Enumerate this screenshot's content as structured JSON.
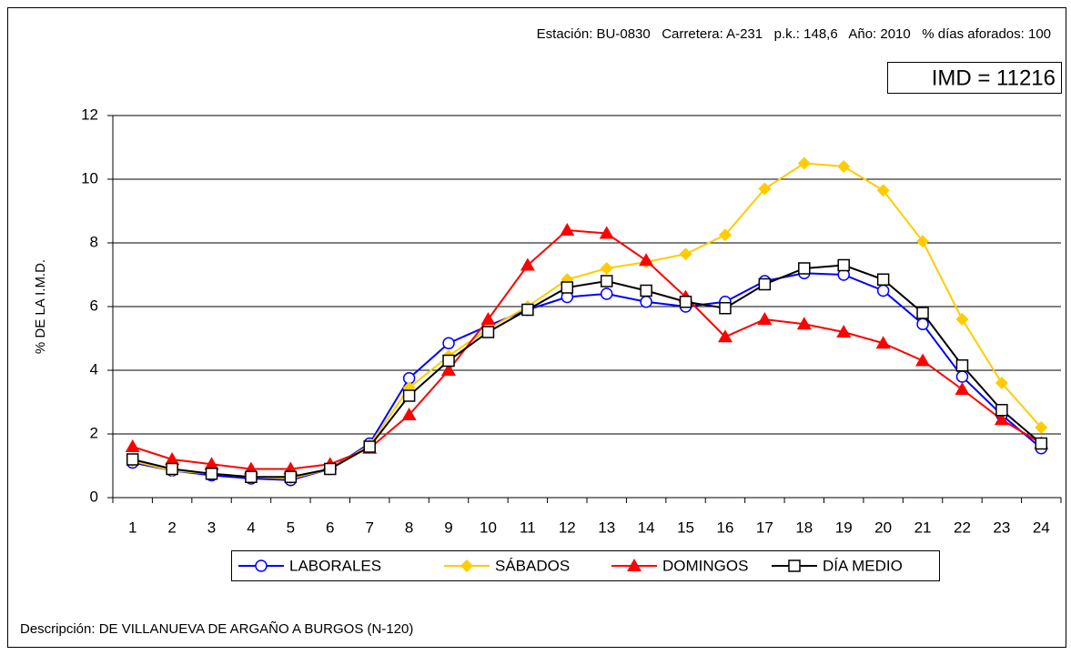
{
  "chart_data": {
    "type": "line",
    "subtitle": "Estación: BU-0830   Carretera: A-231   p.k.: 148,6   Año: 2010   % días aforados: 100",
    "annotation": "IMD = 11216",
    "y_label": "% DE LA I.M.D.",
    "description": "Descripción: DE VILLANUEVA DE ARGAÑO A BURGOS (N-120)",
    "categories": [
      "1",
      "2",
      "3",
      "4",
      "5",
      "6",
      "7",
      "8",
      "9",
      "10",
      "11",
      "12",
      "13",
      "14",
      "15",
      "16",
      "17",
      "18",
      "19",
      "20",
      "21",
      "22",
      "23",
      "24"
    ],
    "series": [
      {
        "name": "LABORALES",
        "color": "#0000ff",
        "marker": "circle",
        "values": [
          1.1,
          0.85,
          0.7,
          0.6,
          0.55,
          0.9,
          1.7,
          3.75,
          4.85,
          5.4,
          5.9,
          6.3,
          6.4,
          6.15,
          6.0,
          6.15,
          6.8,
          7.05,
          7.0,
          6.5,
          5.45,
          3.8,
          2.6,
          1.55
        ]
      },
      {
        "name": "SÁBADOS",
        "color": "#ffcc00",
        "marker": "diamond",
        "values": [
          1.15,
          0.85,
          0.75,
          0.65,
          0.6,
          0.9,
          1.65,
          3.45,
          4.45,
          5.3,
          6.0,
          6.85,
          7.2,
          7.4,
          7.65,
          8.25,
          9.7,
          10.5,
          10.4,
          9.65,
          8.05,
          5.6,
          3.6,
          2.2
        ]
      },
      {
        "name": "DOMINGOS",
        "color": "#ff0000",
        "marker": "triangle",
        "values": [
          1.6,
          1.2,
          1.05,
          0.9,
          0.9,
          1.05,
          1.55,
          2.6,
          4.0,
          5.6,
          7.3,
          8.4,
          8.3,
          7.45,
          6.3,
          5.05,
          5.6,
          5.45,
          5.2,
          4.85,
          4.3,
          3.4,
          2.45,
          1.7
        ]
      },
      {
        "name": "DÍA MEDIO",
        "color": "#000000",
        "marker": "square",
        "values": [
          1.2,
          0.9,
          0.75,
          0.65,
          0.65,
          0.9,
          1.6,
          3.2,
          4.3,
          5.2,
          5.9,
          6.6,
          6.8,
          6.5,
          6.15,
          5.95,
          6.7,
          7.2,
          7.3,
          6.85,
          5.8,
          4.15,
          2.75,
          1.7
        ]
      }
    ],
    "ylim": [
      0,
      12
    ],
    "yticks": [
      0,
      2,
      4,
      6,
      8,
      10,
      12
    ],
    "grid": true
  }
}
